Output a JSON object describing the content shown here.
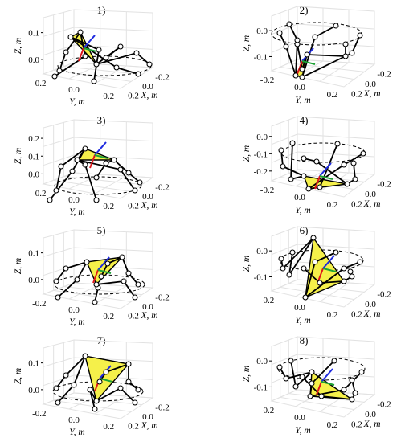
{
  "figure": {
    "colors": {
      "platform_fill": "#f5f04a",
      "link": "#000000",
      "joint": "#000000",
      "frame_x": "#e0161b",
      "frame_y": "#1fa336",
      "frame_z": "#1f2be0",
      "circle": "#000000",
      "grid": "#e2e2e2"
    },
    "panels": [
      {
        "title": "1)",
        "variant": "low",
        "zlabel": "Z, m",
        "ylabel": "Y, m",
        "xlabel": "X, m",
        "zticks": [
          "0.1",
          "0.0"
        ],
        "yticks": [
          "-0.2",
          "0.0",
          "0.2"
        ],
        "xticks": [
          "-0.2",
          "0.0",
          "0.2"
        ]
      },
      {
        "title": "2)",
        "variant": "high",
        "zlabel": "Z, m",
        "ylabel": "Y, m",
        "xlabel": "X, m",
        "zticks": [
          "0.0",
          "-0.1"
        ],
        "yticks": [
          "-0.2",
          "0.0",
          "0.2"
        ],
        "xticks": [
          "-0.2",
          "0.0",
          "0.2"
        ]
      },
      {
        "title": "3)",
        "variant": "low",
        "zlabel": "Z, m",
        "ylabel": "Y, m",
        "xlabel": "X, m",
        "zticks": [
          "0.2",
          "0.1",
          "0.0"
        ],
        "yticks": [
          "-0.2",
          "0.0",
          "0.2"
        ],
        "xticks": [
          "-0.2",
          "0.0",
          "0.2"
        ]
      },
      {
        "title": "4)",
        "variant": "high",
        "zlabel": "Z, m",
        "ylabel": "Y, m",
        "xlabel": "X, m",
        "zticks": [
          "0.0",
          "-0.1",
          "-0.2"
        ],
        "yticks": [
          "-0.2",
          "0.0",
          "0.2"
        ],
        "xticks": [
          "-0.2",
          "0.0",
          "0.2"
        ]
      },
      {
        "title": "5)",
        "variant": "low",
        "zlabel": "Z, m",
        "ylabel": "Y, m",
        "xlabel": "X, m",
        "zticks": [
          "0.1",
          "0.0"
        ],
        "yticks": [
          "-0.2",
          "0.0",
          "0.2"
        ],
        "xticks": [
          "-0.2",
          "0.0",
          "0.2"
        ]
      },
      {
        "title": "6)",
        "variant": "high",
        "zlabel": "Z, m",
        "ylabel": "Y, m",
        "xlabel": "X, m",
        "zticks": [
          "0.0",
          "-0.1"
        ],
        "yticks": [
          "-0.2",
          "0.0",
          "0.2"
        ],
        "xticks": [
          "-0.2",
          "0.0",
          "0.2"
        ]
      },
      {
        "title": "7)",
        "variant": "low",
        "zlabel": "Z, m",
        "ylabel": "Y, m",
        "xlabel": "X, m",
        "zticks": [
          "0.1",
          "0.0"
        ],
        "yticks": [
          "-0.2",
          "0.0",
          "0.2"
        ],
        "xticks": [
          "-0.2",
          "0.0",
          "0.2"
        ]
      },
      {
        "title": "8)",
        "variant": "high",
        "zlabel": "Z, m",
        "ylabel": "Y, m",
        "xlabel": "X, m",
        "zticks": [
          "0.0",
          "-0.1"
        ],
        "yticks": [
          "-0.2",
          "0.0",
          "0.2"
        ],
        "xticks": [
          "-0.2",
          "0.0",
          "0.2"
        ]
      }
    ]
  }
}
